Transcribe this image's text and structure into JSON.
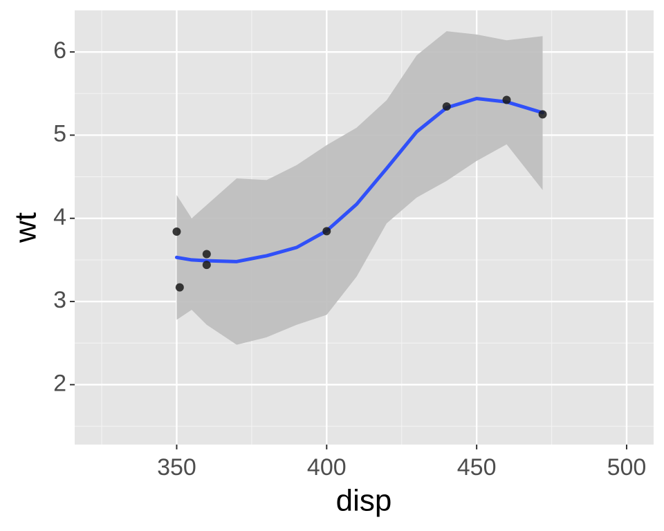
{
  "chart_data": {
    "type": "scatter",
    "x_label": "disp",
    "y_label": "wt",
    "x": [
      350,
      351,
      360,
      360,
      400,
      440,
      460,
      472
    ],
    "values": [
      3.84,
      3.17,
      3.44,
      3.57,
      3.845,
      5.345,
      5.424,
      5.25
    ],
    "color": "#1a1a1a",
    "smooth": {
      "color": "#3050f8",
      "band_color": "#bdbdbd",
      "x": [
        350,
        355,
        360,
        370,
        380,
        390,
        400,
        410,
        420,
        430,
        440,
        450,
        460,
        472
      ],
      "fit": [
        3.53,
        3.5,
        3.49,
        3.48,
        3.55,
        3.65,
        3.85,
        4.17,
        4.6,
        5.04,
        5.33,
        5.44,
        5.4,
        5.27
      ],
      "lower": [
        2.78,
        2.9,
        2.72,
        2.48,
        2.57,
        2.72,
        2.84,
        3.3,
        3.94,
        4.25,
        4.45,
        4.69,
        4.89,
        4.34
      ],
      "upper": [
        4.28,
        4.0,
        4.16,
        4.48,
        4.46,
        4.64,
        4.88,
        5.09,
        5.42,
        5.96,
        6.25,
        6.21,
        6.14,
        6.19
      ]
    },
    "xlim": [
      316,
      509
    ],
    "ylim": [
      1.28,
      6.5
    ],
    "xticks": [
      350,
      400,
      450,
      500
    ],
    "yticks": [
      2,
      3,
      4,
      5,
      6
    ],
    "xminor": [
      325,
      375,
      425,
      475
    ],
    "yminor": [
      1.5,
      2.5,
      3.5,
      4.5,
      5.5
    ],
    "grid": true
  }
}
